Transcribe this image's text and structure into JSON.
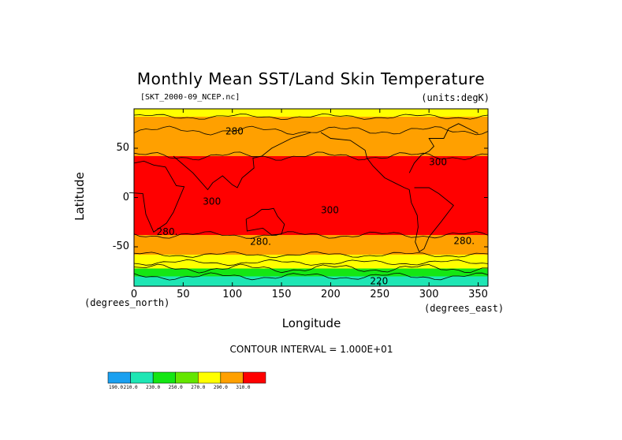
{
  "title": "Monthly Mean SST/Land Skin Temperature",
  "file_label": "[SKT_2000-09_NCEP.nc]",
  "units_label": "(units:degK)",
  "x_unit": "(degrees_north)",
  "x_unit_right": "(degrees_east)",
  "xlabel": "Longitude",
  "ylabel": "Latitude",
  "contour_interval": "CONTOUR INTERVAL = 1.000E+01",
  "colors": {
    "c190": "#1aa0f0",
    "c210": "#1ee6b4",
    "c230": "#14e614",
    "c260": "#64e600",
    "c270": "#ffff00",
    "c280": "#ffa000",
    "c300": "#ff0000"
  },
  "chart_data": {
    "type": "heatmap",
    "title": "Monthly Mean SST/Land Skin Temperature",
    "xlabel": "Longitude",
    "ylabel": "Latitude",
    "xlim": [
      0,
      360
    ],
    "ylim": [
      -90,
      90
    ],
    "x_ticks": [
      "0",
      "50",
      "100",
      "150",
      "200",
      "250",
      "300",
      "350"
    ],
    "y_ticks": [
      "50",
      "0",
      "-50"
    ],
    "contour_labels": [
      "280",
      "280.",
      "300",
      "300",
      "300",
      "280.",
      "280.",
      "220"
    ],
    "colorbar": {
      "labels": [
        "190.0",
        "210.0",
        "230.0",
        "250.0",
        "270.0",
        "290.0",
        "310.0"
      ],
      "colors": [
        "#1aa0f0",
        "#1ee6b4",
        "#14e614",
        "#64e600",
        "#ffff00",
        "#ffa000",
        "#ff0000"
      ]
    },
    "lat_bands": [
      {
        "lat_from": 90,
        "lat_to": 82,
        "value": 270
      },
      {
        "lat_from": 82,
        "lat_to": 68,
        "value": 280
      },
      {
        "lat_from": 68,
        "lat_to": 42,
        "value": 290
      },
      {
        "lat_from": 42,
        "lat_to": -38,
        "value": 305
      },
      {
        "lat_from": -38,
        "lat_to": -58,
        "value": 290
      },
      {
        "lat_from": -58,
        "lat_to": -66,
        "value": 270
      },
      {
        "lat_from": -66,
        "lat_to": -72,
        "value": 260
      },
      {
        "lat_from": -72,
        "lat_to": -80,
        "value": 240
      },
      {
        "lat_from": -80,
        "lat_to": -90,
        "value": 220
      }
    ]
  }
}
